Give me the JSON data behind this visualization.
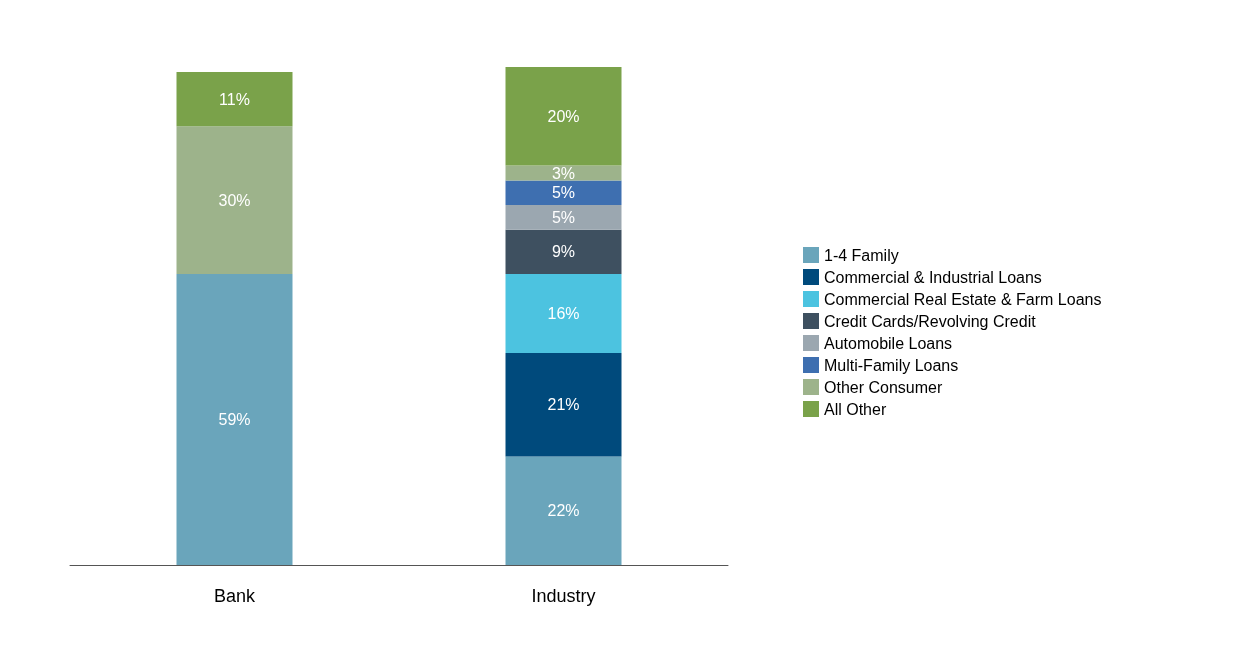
{
  "chart_data": {
    "type": "bar",
    "stacked": true,
    "categories": [
      "Bank",
      "Industry"
    ],
    "legend": "right",
    "series": [
      {
        "name": "1-4 Family",
        "color": "#6aa5bb",
        "values": [
          59,
          22
        ],
        "value_labels": [
          "59%",
          "22%"
        ]
      },
      {
        "name": "Commercial & Industrial Loans",
        "color": "#004a7c",
        "values": [
          null,
          21
        ],
        "value_labels": [
          null,
          "21%"
        ]
      },
      {
        "name": "Commercial Real Estate & Farm Loans",
        "color": "#4cc3e0",
        "values": [
          null,
          16
        ],
        "value_labels": [
          null,
          "16%"
        ]
      },
      {
        "name": "Credit Cards/Revolving Credit",
        "color": "#3e5060",
        "values": [
          null,
          9
        ],
        "value_labels": [
          null,
          "9%"
        ]
      },
      {
        "name": "Automobile Loans",
        "color": "#9ba7b0",
        "values": [
          null,
          5
        ],
        "value_labels": [
          null,
          "5%"
        ]
      },
      {
        "name": "Multi-Family Loans",
        "color": "#3e6fb0",
        "values": [
          null,
          5
        ],
        "value_labels": [
          null,
          "5%"
        ]
      },
      {
        "name": "Other Consumer",
        "color": "#9db38b",
        "values": [
          30,
          3
        ],
        "value_labels": [
          "30%",
          "3%"
        ]
      },
      {
        "name": "All Other",
        "color": "#7aa24a",
        "values": [
          11,
          20
        ],
        "value_labels": [
          "11%",
          "20%"
        ]
      }
    ]
  }
}
